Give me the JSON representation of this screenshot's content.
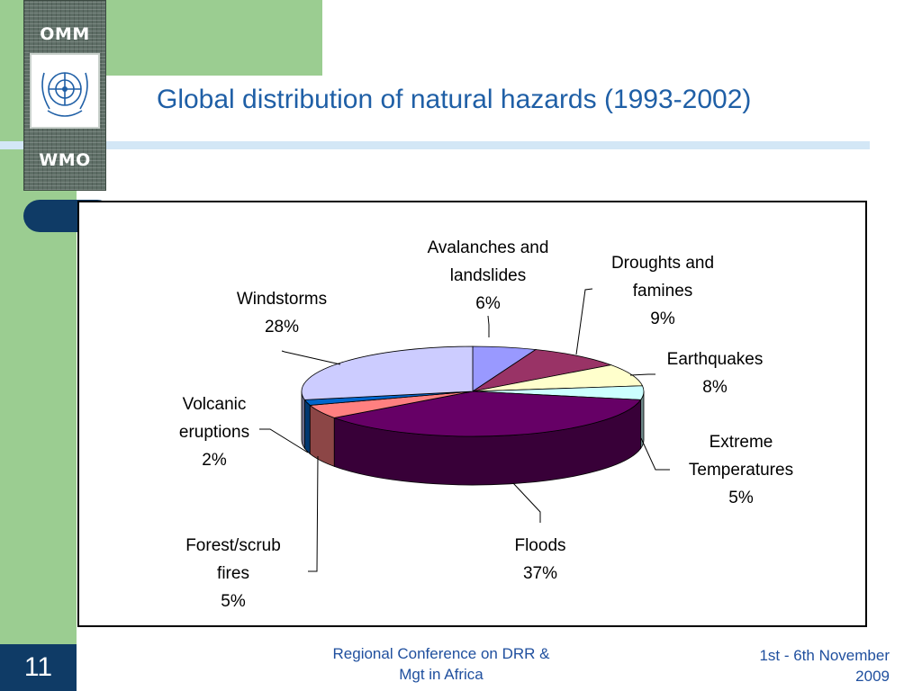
{
  "slide": {
    "title": "Global distribution of natural hazards (1993-2002)",
    "number": "11"
  },
  "logo": {
    "top_text": "OMM",
    "bottom_text": "WMO"
  },
  "footer": {
    "center_line1": "Regional Conference on DRR &",
    "center_line2": "Mgt in Africa",
    "right_line1": "1st - 6th November",
    "right_line2": "2009"
  },
  "colors": {
    "title": "#1f5fa6",
    "sidebar": "#9bcd91",
    "dark_blue": "#0f3b66",
    "footer_text": "#1f4f9e"
  },
  "chart_data": {
    "type": "pie",
    "style": "3d",
    "title": "",
    "categories": [
      "Avalanches and landslides",
      "Droughts and famines",
      "Earthquakes",
      "Extreme Temperatures",
      "Floods",
      "Forest/scrub fires",
      "Volcanic eruptions",
      "Windstorms"
    ],
    "values": [
      6,
      9,
      8,
      5,
      37,
      5,
      2,
      28
    ],
    "unit": "%",
    "colors": [
      "#9999ff",
      "#993366",
      "#ffffcc",
      "#ccffff",
      "#660066",
      "#ff8080",
      "#0066cc",
      "#ccccff"
    ],
    "labels": [
      {
        "lines": [
          "Avalanches and",
          "landslides"
        ],
        "value": "6%"
      },
      {
        "lines": [
          "Droughts and",
          "famines"
        ],
        "value": "9%"
      },
      {
        "lines": [
          "Earthquakes"
        ],
        "value": "8%"
      },
      {
        "lines": [
          "Extreme",
          "Temperatures"
        ],
        "value": "5%"
      },
      {
        "lines": [
          "Floods"
        ],
        "value": "37%"
      },
      {
        "lines": [
          "Forest/scrub",
          "fires"
        ],
        "value": "5%"
      },
      {
        "lines": [
          "Volcanic",
          "eruptions"
        ],
        "value": "2%"
      },
      {
        "lines": [
          "Windstorms"
        ],
        "value": "28%"
      }
    ],
    "legend": "none"
  }
}
